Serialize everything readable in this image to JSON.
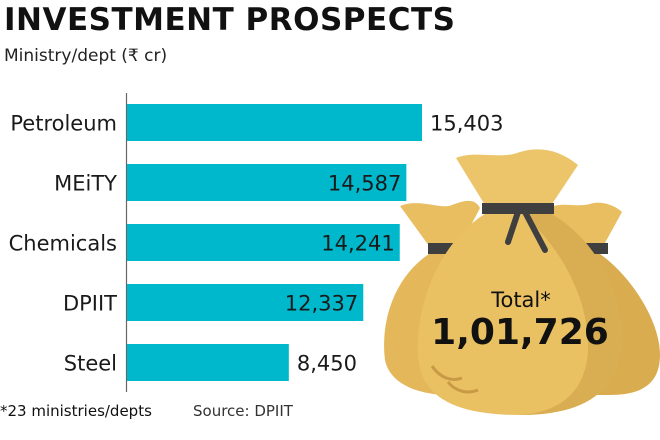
{
  "title": "INVESTMENT PROSPECTS",
  "subtitle": "Ministry/dept (₹ cr)",
  "footnote": "*23 ministries/depts",
  "source": "Source: DPIIT",
  "total": {
    "label": "Total*",
    "value": "1,01,726"
  },
  "colors": {
    "bar": "#00b8cc",
    "bag": "#e6bb5c",
    "bag_shade": "#d4a84a",
    "bag_light": "#efcd7a",
    "tie": "#3f3f3f"
  },
  "icons": [
    "money-bag-icon"
  ],
  "chart_data": {
    "type": "bar",
    "orientation": "horizontal",
    "title": "INVESTMENT PROSPECTS",
    "subtitle": "Ministry/dept (₹ cr)",
    "categories": [
      "Petroleum",
      "MEiTY",
      "Chemicals",
      "DPIIT",
      "Steel"
    ],
    "values": [
      15403,
      14587,
      14241,
      12337,
      8450
    ],
    "value_labels": [
      "15,403",
      "14,587",
      "14,241",
      "12,337",
      "8,450"
    ],
    "label_inside": [
      false,
      true,
      true,
      true,
      false
    ],
    "xlim": [
      0,
      15403
    ],
    "grid": false,
    "legend": "none"
  }
}
